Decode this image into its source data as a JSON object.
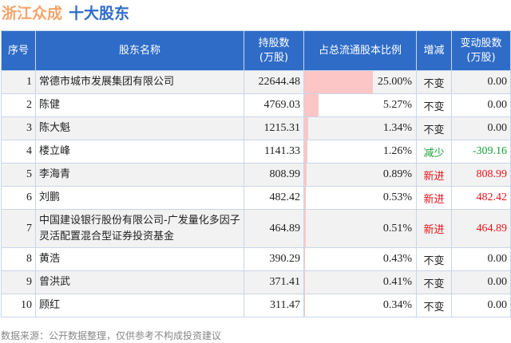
{
  "title": {
    "company": "浙江众成",
    "subtitle": "十大股东"
  },
  "headers": [
    "序号",
    "股东名称",
    "持股数\n(万股)",
    "占总流通股本比例",
    "增减",
    "变动股数\n(万股)"
  ],
  "colors": {
    "header_bg": "#2f6cc8",
    "bar": "#fcc6c6",
    "increase": "#e8131a",
    "decrease": "#13a335"
  },
  "rows": [
    {
      "no": "1",
      "name": "常德市城市发展集团有限公司",
      "shares": "22644.48",
      "pct": 25.0,
      "pct_label": "25.00%",
      "change": "不变",
      "delta": "0.00",
      "type": "same"
    },
    {
      "no": "2",
      "name": "陈健",
      "shares": "4769.03",
      "pct": 5.27,
      "pct_label": "5.27%",
      "change": "不变",
      "delta": "0.00",
      "type": "same"
    },
    {
      "no": "3",
      "name": "陈大魁",
      "shares": "1215.31",
      "pct": 1.34,
      "pct_label": "1.34%",
      "change": "不变",
      "delta": "0.00",
      "type": "same"
    },
    {
      "no": "4",
      "name": "楼立峰",
      "shares": "1141.33",
      "pct": 1.26,
      "pct_label": "1.26%",
      "change": "减少",
      "delta": "-309.16",
      "type": "down"
    },
    {
      "no": "5",
      "name": "李海青",
      "shares": "808.99",
      "pct": 0.89,
      "pct_label": "0.89%",
      "change": "新进",
      "delta": "808.99",
      "type": "new"
    },
    {
      "no": "6",
      "name": "刘鹏",
      "shares": "482.42",
      "pct": 0.53,
      "pct_label": "0.53%",
      "change": "新进",
      "delta": "482.42",
      "type": "new"
    },
    {
      "no": "7",
      "name": "中国建设银行股份有限公司-广发量化多因子灵活配置混合型证券投资基金",
      "shares": "464.89",
      "pct": 0.51,
      "pct_label": "0.51%",
      "change": "新进",
      "delta": "464.89",
      "type": "new"
    },
    {
      "no": "8",
      "name": "黄浩",
      "shares": "390.29",
      "pct": 0.43,
      "pct_label": "0.43%",
      "change": "不变",
      "delta": "0.00",
      "type": "same"
    },
    {
      "no": "9",
      "name": "曾洪武",
      "shares": "371.41",
      "pct": 0.41,
      "pct_label": "0.41%",
      "change": "不变",
      "delta": "0.00",
      "type": "same"
    },
    {
      "no": "10",
      "name": "顾红",
      "shares": "311.47",
      "pct": 0.34,
      "pct_label": "0.34%",
      "change": "不变",
      "delta": "0.00",
      "type": "same"
    }
  ],
  "footer": "数据来源：公开数据整理，仅供参考不构成投资建议"
}
